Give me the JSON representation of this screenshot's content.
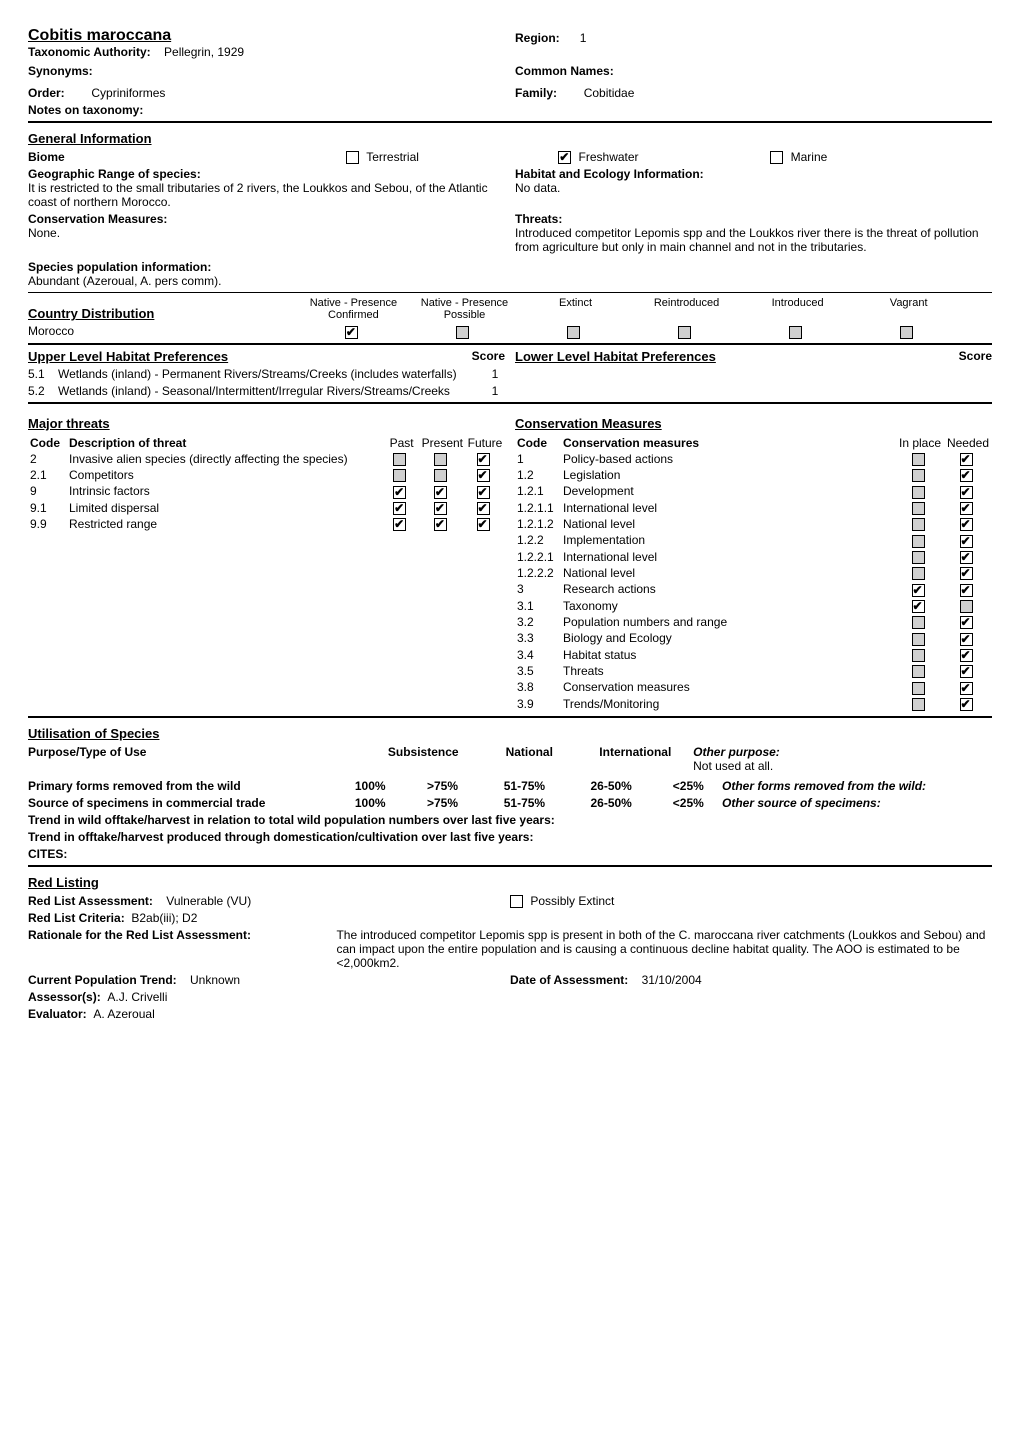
{
  "header": {
    "species_name": "Cobitis maroccana",
    "taxonomic_authority_label": "Taxonomic Authority:",
    "taxonomic_authority_value": "Pellegrin, 1929",
    "region_label": "Region:",
    "region_value": "1",
    "synonyms_label": "Synonyms:",
    "common_names_label": "Common Names:",
    "order_label": "Order:",
    "order_value": "Cypriniformes",
    "family_label": "Family:",
    "family_value": "Cobitidae",
    "notes_on_taxonomy_label": "Notes on taxonomy:"
  },
  "general": {
    "heading": "General Information",
    "biome_label": "Biome",
    "terrestrial_label": "Terrestrial",
    "freshwater_label": "Freshwater",
    "marine_label": "Marine",
    "terrestrial_checked": false,
    "freshwater_checked": true,
    "marine_checked": false,
    "geo_range_label": "Geographic Range of species:",
    "geo_range_text": "It is restricted to the small tributaries of 2 rivers, the Loukkos and Sebou, of the Atlantic coast of northern Morocco.",
    "habitat_label": "Habitat and Ecology Information:",
    "habitat_text": "No data.",
    "conservation_measures_label": "Conservation Measures:",
    "conservation_measures_text": "None.",
    "threats_label": "Threats:",
    "threats_text": "Introduced competitor Lepomis spp and the Loukkos river there is the threat of pollution from agriculture but only in main channel and not in the tributaries.",
    "species_pop_label": "Species population information:",
    "species_pop_text": "Abundant (Azeroual, A. pers comm)."
  },
  "country_dist": {
    "heading": "Country Distribution",
    "columns": [
      "Native - Presence Confirmed",
      "Native - Presence Possible",
      "Extinct",
      "Reintroduced",
      "Introduced",
      "Vagrant"
    ],
    "rows": [
      {
        "country": "Morocco",
        "checks": [
          true,
          false,
          false,
          false,
          false,
          false
        ]
      }
    ]
  },
  "habitat_prefs": {
    "upper_heading": "Upper Level Habitat Preferences",
    "lower_heading": "Lower Level Habitat Preferences",
    "score_label": "Score",
    "upper_items": [
      {
        "code": "5.1",
        "text": "Wetlands (inland) - Permanent Rivers/Streams/Creeks (includes waterfalls)",
        "score": "1"
      },
      {
        "code": "5.2",
        "text": "Wetlands (inland) - Seasonal/Intermittent/Irregular Rivers/Streams/Creeks",
        "score": "1"
      }
    ]
  },
  "threats": {
    "heading": "Major threats",
    "code_label": "Code",
    "desc_label": "Description of threat",
    "past_label": "Past",
    "present_label": "Present",
    "future_label": "Future",
    "items": [
      {
        "code": "2",
        "desc": "Invasive alien species (directly affecting the species)",
        "past": false,
        "present": false,
        "future": true,
        "past_grey": true,
        "present_grey": true
      },
      {
        "code": "2.1",
        "desc": "Competitors",
        "past": false,
        "present": false,
        "future": true,
        "past_grey": true,
        "present_grey": true
      },
      {
        "code": "9",
        "desc": "Intrinsic factors",
        "past": true,
        "present": true,
        "future": true,
        "past_grey": false,
        "present_grey": false
      },
      {
        "code": "9.1",
        "desc": "Limited dispersal",
        "past": true,
        "present": true,
        "future": true,
        "past_grey": false,
        "present_grey": false
      },
      {
        "code": "9.9",
        "desc": "Restricted range",
        "past": true,
        "present": true,
        "future": true,
        "past_grey": false,
        "present_grey": false
      }
    ]
  },
  "cons_measures": {
    "heading": "Conservation Measures",
    "code_label": "Code",
    "desc_label": "Conservation measures",
    "inplace_label": "In place",
    "needed_label": "Needed",
    "items": [
      {
        "code": "1",
        "desc": "Policy-based actions",
        "inplace": false,
        "needed": true,
        "inplace_grey": true
      },
      {
        "code": "1.2",
        "desc": "Legislation",
        "inplace": false,
        "needed": true,
        "inplace_grey": true
      },
      {
        "code": "1.2.1",
        "desc": "Development",
        "inplace": false,
        "needed": true,
        "inplace_grey": true
      },
      {
        "code": "1.2.1.1",
        "desc": "International level",
        "inplace": false,
        "needed": true,
        "inplace_grey": true
      },
      {
        "code": "1.2.1.2",
        "desc": "National level",
        "inplace": false,
        "needed": true,
        "inplace_grey": true
      },
      {
        "code": "1.2.2",
        "desc": "Implementation",
        "inplace": false,
        "needed": true,
        "inplace_grey": true
      },
      {
        "code": "1.2.2.1",
        "desc": "International level",
        "inplace": false,
        "needed": true,
        "inplace_grey": true
      },
      {
        "code": "1.2.2.2",
        "desc": "National level",
        "inplace": false,
        "needed": true,
        "inplace_grey": true
      },
      {
        "code": "3",
        "desc": "Research actions",
        "inplace": true,
        "needed": true,
        "inplace_grey": false
      },
      {
        "code": "3.1",
        "desc": "Taxonomy",
        "inplace": true,
        "needed": false,
        "inplace_grey": false,
        "needed_grey": true
      },
      {
        "code": "3.2",
        "desc": "Population numbers and range",
        "inplace": false,
        "needed": true,
        "inplace_grey": true
      },
      {
        "code": "3.3",
        "desc": "Biology and Ecology",
        "inplace": false,
        "needed": true,
        "inplace_grey": true
      },
      {
        "code": "3.4",
        "desc": "Habitat status",
        "inplace": false,
        "needed": true,
        "inplace_grey": true
      },
      {
        "code": "3.5",
        "desc": "Threats",
        "inplace": false,
        "needed": true,
        "inplace_grey": true
      },
      {
        "code": "3.8",
        "desc": "Conservation measures",
        "inplace": false,
        "needed": true,
        "inplace_grey": true
      },
      {
        "code": "3.9",
        "desc": "Trends/Monitoring",
        "inplace": false,
        "needed": true,
        "inplace_grey": true
      }
    ]
  },
  "utilisation": {
    "heading": "Utilisation of Species",
    "purpose_label": "Purpose/Type of Use",
    "subsistence_label": "Subsistence",
    "national_label": "National",
    "international_label": "International",
    "other_purpose_label": "Other purpose:",
    "other_purpose_value": "Not used at all.",
    "primary_label": "Primary forms removed from the wild",
    "source_label": "Source of specimens in commercial trade",
    "p100": "100%",
    "p75": ">75%",
    "p5175": "51-75%",
    "p2650": "26-50%",
    "p25": "<25%",
    "other_forms_label": "Other forms removed from the wild:",
    "other_source_label": "Other source of specimens:",
    "trend_wild_label": "Trend in wild offtake/harvest in relation to total wild population numbers over last five years:",
    "trend_domestic_label": "Trend in offtake/harvest produced through domestication/cultivation over last five years:",
    "cites_label": "CITES:"
  },
  "redlist": {
    "heading": "Red Listing",
    "assessment_label": "Red List Assessment:",
    "assessment_value": "Vulnerable (VU)",
    "possibly_extinct_label": "Possibly Extinct",
    "possibly_extinct_checked": false,
    "criteria_label": "Red List Criteria:",
    "criteria_value": "B2ab(iii); D2",
    "rationale_label": "Rationale for the Red List Assessment:",
    "rationale_value": "The introduced competitor Lepomis spp is present in both of the C. maroccana river catchments (Loukkos and Sebou) and can impact upon the entire population and is causing a continuous decline habitat quality. The AOO is estimated to be <2,000km2.",
    "pop_trend_label": "Current Population Trend:",
    "pop_trend_value": "Unknown",
    "date_label": "Date of Assessment:",
    "date_value": "31/10/2004",
    "assessor_label": "Assessor(s):",
    "assessor_value": "A.J. Crivelli",
    "evaluator_label": "Evaluator:",
    "evaluator_value": "A. Azeroual"
  }
}
